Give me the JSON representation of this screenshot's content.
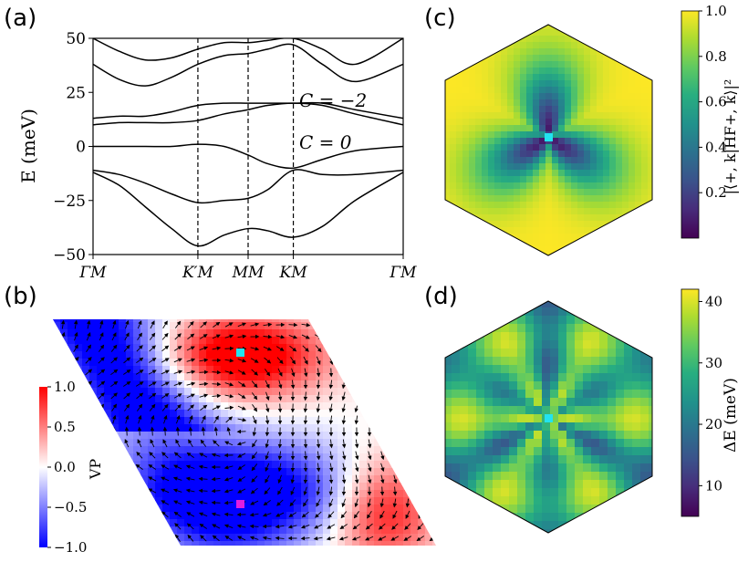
{
  "panels": {
    "a": {
      "label": "(a)",
      "chart_data": {
        "type": "line",
        "ylabel": "E (meV)",
        "ylim": [
          -50,
          50
        ],
        "yticks": [
          50,
          25,
          0,
          -25,
          -50
        ],
        "ytick_labels": [
          "50",
          "25",
          "0",
          "−25",
          "−50"
        ],
        "x_points": [
          "ΓM",
          "K′M",
          "MM",
          "KM",
          "ΓM"
        ],
        "x_positions": [
          0,
          0.48,
          0.71,
          0.917,
          1.42
        ],
        "annotations": [
          {
            "text": "C = −2",
            "color": "#e8201c"
          },
          {
            "text": "C = 0",
            "color": "#e8201c"
          }
        ],
        "series": [
          {
            "name": "band1",
            "x": [
              0,
              0.12,
              0.24,
              0.36,
              0.48,
              0.6,
              0.71,
              0.8,
              0.917,
              1.05,
              1.2,
              1.42
            ],
            "y": [
              -12,
              -18,
              -28,
              -38,
              -46,
              -41,
              -38,
              -39,
              -42,
              -37,
              -25,
              -12
            ]
          },
          {
            "name": "band2",
            "x": [
              0,
              0.12,
              0.24,
              0.36,
              0.48,
              0.6,
              0.71,
              0.8,
              0.917,
              1.05,
              1.2,
              1.42
            ],
            "y": [
              -11,
              -13,
              -17,
              -22,
              -26,
              -25,
              -24,
              -20,
              -11,
              -13,
              -13,
              -11
            ]
          },
          {
            "name": "band3",
            "x": [
              0,
              0.12,
              0.24,
              0.36,
              0.48,
              0.6,
              0.71,
              0.8,
              0.917,
              1.05,
              1.2,
              1.42
            ],
            "y": [
              0,
              0,
              0,
              0,
              1,
              0,
              -4,
              -8,
              -10,
              -6,
              -2,
              0
            ]
          },
          {
            "name": "band4",
            "x": [
              0,
              0.12,
              0.24,
              0.36,
              0.48,
              0.6,
              0.71,
              0.8,
              0.917,
              1.05,
              1.2,
              1.42
            ],
            "y": [
              10,
              11,
              11,
              11,
              12,
              15,
              17,
              19,
              20,
              19,
              15,
              10
            ]
          },
          {
            "name": "band5",
            "x": [
              0,
              0.12,
              0.24,
              0.36,
              0.48,
              0.6,
              0.71,
              0.8,
              0.917,
              1.05,
              1.2,
              1.42
            ],
            "y": [
              13,
              14,
              14,
              16,
              19,
              20,
              20,
              20,
              20,
              20,
              17,
              13
            ]
          },
          {
            "name": "band6",
            "x": [
              0,
              0.12,
              0.24,
              0.36,
              0.48,
              0.6,
              0.71,
              0.8,
              0.917,
              1.05,
              1.2,
              1.42
            ],
            "y": [
              38,
              31,
              28,
              32,
              38,
              42,
              43,
              45,
              47,
              38,
              30,
              38
            ]
          },
          {
            "name": "band7",
            "x": [
              0,
              0.12,
              0.24,
              0.36,
              0.48,
              0.6,
              0.71,
              0.8,
              0.917,
              1.05,
              1.2,
              1.42
            ],
            "y": [
              50,
              44,
              40,
              41,
              45,
              48,
              48,
              49,
              50,
              45,
              38,
              50
            ]
          }
        ]
      }
    },
    "b": {
      "label": "(b)",
      "chart_data": {
        "type": "heatmap",
        "colorbar_label": "VP",
        "clim": [
          -1.0,
          1.0
        ],
        "colorbar_ticks": [
          1.0,
          0.5,
          0.0,
          -0.5,
          -1.0
        ],
        "colorbar_tick_labels": [
          "1.0",
          "0.5",
          "0.0",
          "−0.5",
          "−1.0"
        ]
      }
    },
    "c": {
      "label": "(c)",
      "chart_data": {
        "type": "heatmap",
        "colorbar_label": "|⟨+, k|HF+, k⟩|²",
        "clim": [
          0.0,
          1.0
        ],
        "colorbar_ticks": [
          1.0,
          0.8,
          0.6,
          0.4,
          0.2
        ],
        "colorbar_tick_labels": [
          "1.0",
          "0.8",
          "0.6",
          "0.4",
          "0.2"
        ]
      }
    },
    "d": {
      "label": "(d)",
      "chart_data": {
        "type": "heatmap",
        "colorbar_label": "ΔE (meV)",
        "clim": [
          5,
          42
        ],
        "colorbar_ticks": [
          40,
          30,
          20,
          10
        ],
        "colorbar_tick_labels": [
          "40",
          "30",
          "20",
          "10"
        ]
      }
    }
  },
  "colors": {
    "band_line": "#000000",
    "annotation": "#e8201c",
    "marker_cyan": "#22e3f0",
    "marker_magenta": "#e01ee0",
    "vp_red": "#ff1a1a",
    "vp_blue": "#1a1aff"
  }
}
